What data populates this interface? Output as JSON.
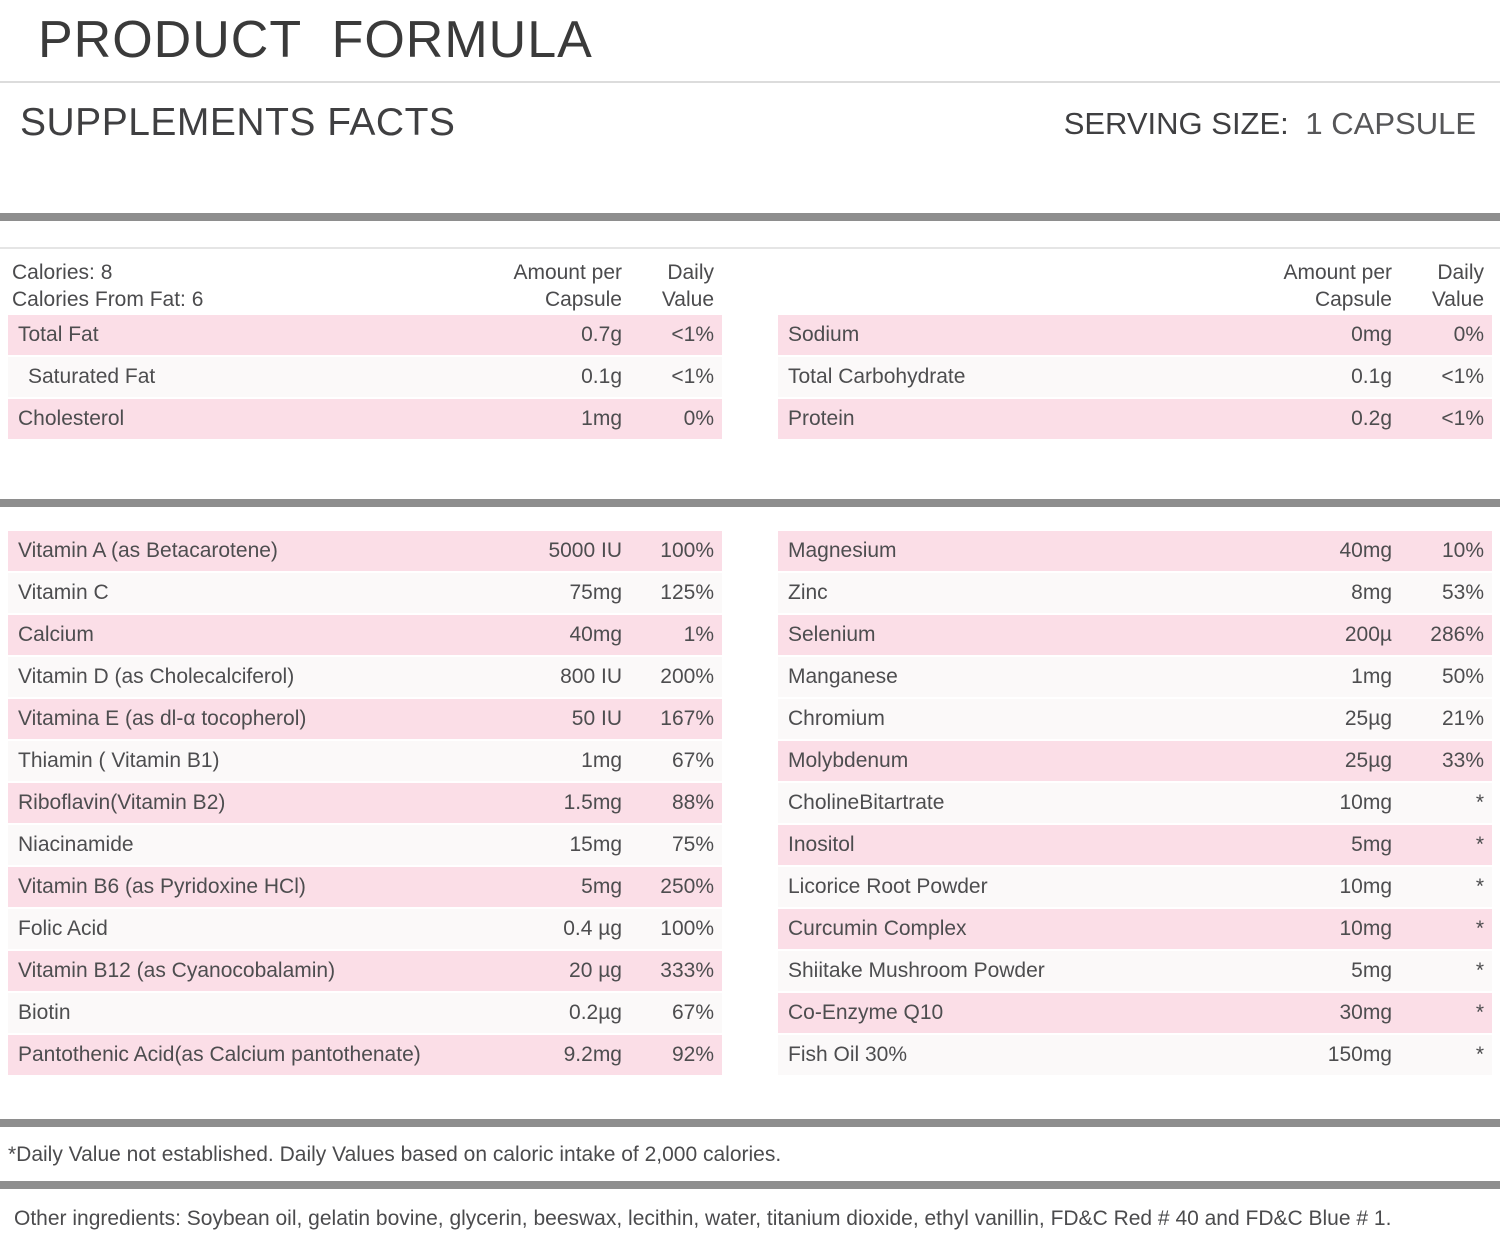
{
  "colors": {
    "accent_pink": "#fbdee7",
    "separator_gray": "#8e8e8e",
    "divider_light": "#dcdcdc"
  },
  "header": {
    "title_primary": "PRODUCT",
    "title_secondary": "FORMULA",
    "facts_heading": "SUPPLEMENTS FACTS",
    "serving_label": "SERVING SIZE:",
    "serving_value": "1 CAPSULE"
  },
  "columns": {
    "amount_line1": "Amount per",
    "amount_line2": "Capsule",
    "daily_line1": "Daily",
    "daily_line2": "Value"
  },
  "macro": {
    "left": {
      "calories_line1": "Calories: 8",
      "calories_line2": "Calories From Fat: 6",
      "rows": [
        {
          "name": "Total Fat",
          "amount": "0.7g",
          "daily": "<1%",
          "pink": true
        },
        {
          "name": "Saturated Fat",
          "amount": "0.1g",
          "daily": "<1%",
          "pink": false,
          "indent": true
        },
        {
          "name": "Cholesterol",
          "amount": "1mg",
          "daily": "0%",
          "pink": true
        }
      ]
    },
    "right": {
      "rows": [
        {
          "name": "Sodium",
          "amount": "0mg",
          "daily": "0%",
          "pink": true
        },
        {
          "name": "Total Carbohydrate",
          "amount": "0.1g",
          "daily": "<1%",
          "pink": false
        },
        {
          "name": "Protein",
          "amount": "0.2g",
          "daily": "<1%",
          "pink": true
        }
      ]
    }
  },
  "nutrients": {
    "left_rows": [
      {
        "name": "Vitamin A (as Betacarotene)",
        "amount": "5000 IU",
        "daily": "100%",
        "pink": true
      },
      {
        "name": "Vitamin C",
        "amount": "75mg",
        "daily": "125%",
        "pink": false
      },
      {
        "name": "Calcium",
        "amount": "40mg",
        "daily": "1%",
        "pink": true
      },
      {
        "name": "Vitamin D (as Cholecalciferol)",
        "amount": "800 IU",
        "daily": "200%",
        "pink": false
      },
      {
        "name": "Vitamina E (as dl-α tocopherol)",
        "amount": "50 IU",
        "daily": "167%",
        "pink": true
      },
      {
        "name": "Thiamin ( Vitamin B1)",
        "amount": "1mg",
        "daily": "67%",
        "pink": false
      },
      {
        "name": "Riboflavin(Vitamin B2)",
        "amount": "1.5mg",
        "daily": "88%",
        "pink": true
      },
      {
        "name": "Niacinamide",
        "amount": "15mg",
        "daily": "75%",
        "pink": false
      },
      {
        "name": "Vitamin B6 (as Pyridoxine HCl)",
        "amount": "5mg",
        "daily": "250%",
        "pink": true
      },
      {
        "name": "Folic Acid",
        "amount": "0.4 µg",
        "daily": "100%",
        "pink": false
      },
      {
        "name": "Vitamin B12 (as Cyanocobalamin)",
        "amount": "20 µg",
        "daily": "333%",
        "pink": true
      },
      {
        "name": "Biotin",
        "amount": "0.2µg",
        "daily": "67%",
        "pink": false
      },
      {
        "name": "Pantothenic Acid(as Calcium pantothenate)",
        "amount": "9.2mg",
        "daily": "92%",
        "pink": true
      }
    ],
    "right_rows": [
      {
        "name": "Magnesium",
        "amount": "40mg",
        "daily": "10%",
        "pink": true
      },
      {
        "name": "Zinc",
        "amount": "8mg",
        "daily": "53%",
        "pink": false
      },
      {
        "name": "Selenium",
        "amount": "200µ",
        "daily": "286%",
        "pink": true
      },
      {
        "name": "Manganese",
        "amount": "1mg",
        "daily": "50%",
        "pink": false
      },
      {
        "name": "Chromium",
        "amount": "25µg",
        "daily": "21%",
        "pink": false
      },
      {
        "name": "Molybdenum",
        "amount": "25µg",
        "daily": "33%",
        "pink": true
      },
      {
        "name": "CholineBitartrate",
        "amount": "10mg",
        "daily": "*",
        "pink": false
      },
      {
        "name": "Inositol",
        "amount": "5mg",
        "daily": "*",
        "pink": true
      },
      {
        "name": "Licorice Root Powder",
        "amount": "10mg",
        "daily": "*",
        "pink": false
      },
      {
        "name": "Curcumin Complex",
        "amount": "10mg",
        "daily": "*",
        "pink": true
      },
      {
        "name": "Shiitake Mushroom Powder",
        "amount": "5mg",
        "daily": "*",
        "pink": false
      },
      {
        "name": "Co-Enzyme Q10",
        "amount": "30mg",
        "daily": "*",
        "pink": true
      },
      {
        "name": "Fish Oil 30%",
        "amount": "150mg",
        "daily": "*",
        "pink": false
      }
    ]
  },
  "footer": {
    "daily_value_note": "*Daily Value not established. Daily Values based on caloric intake of 2,000 calories.",
    "other_ingredients": "Other ingredients: Soybean oil, gelatin bovine, glycerin, beeswax, lecithin, water, titanium dioxide, ethyl vanillin, FD&C Red # 40 and FD&C Blue # 1."
  }
}
